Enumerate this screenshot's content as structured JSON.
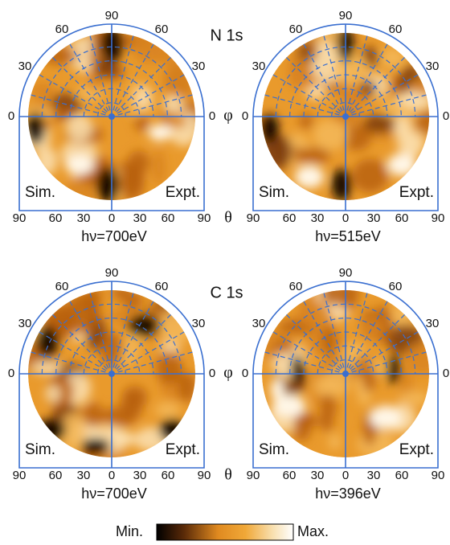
{
  "panels": [
    {
      "title": "N 1s",
      "sim": "Sim.",
      "expt": "Expt.",
      "energy": "hν=700eV",
      "phi_labels": [
        "90",
        "60",
        "60",
        "30",
        "30",
        "0",
        "0"
      ],
      "phi_symbol": "φ",
      "theta_labels": [
        "90",
        "60",
        "30",
        "0",
        "30",
        "60",
        "90"
      ],
      "theta_symbol": "θ"
    },
    {
      "sim": "Sim.",
      "expt": "Expt.",
      "energy": "hν=515eV",
      "phi_labels": [
        "90",
        "60",
        "60",
        "30",
        "30",
        "0",
        "0"
      ],
      "theta_labels": [
        "90",
        "60",
        "30",
        "0",
        "30",
        "60",
        "90"
      ]
    },
    {
      "title": "C 1s",
      "sim": "Sim.",
      "expt": "Expt.",
      "energy": "hν=700eV",
      "phi_labels": [
        "90",
        "60",
        "60",
        "30",
        "30",
        "0",
        "0"
      ],
      "phi_symbol": "φ",
      "theta_labels": [
        "90",
        "60",
        "30",
        "0",
        "30",
        "60",
        "90"
      ],
      "theta_symbol": "θ"
    },
    {
      "sim": "Sim.",
      "expt": "Expt.",
      "energy": "hν=396eV",
      "phi_labels": [
        "90",
        "60",
        "60",
        "30",
        "30",
        "0",
        "0"
      ],
      "theta_labels": [
        "90",
        "60",
        "30",
        "0",
        "30",
        "60",
        "90"
      ]
    }
  ],
  "colorbar": {
    "min": "Min.",
    "max": "Max."
  }
}
